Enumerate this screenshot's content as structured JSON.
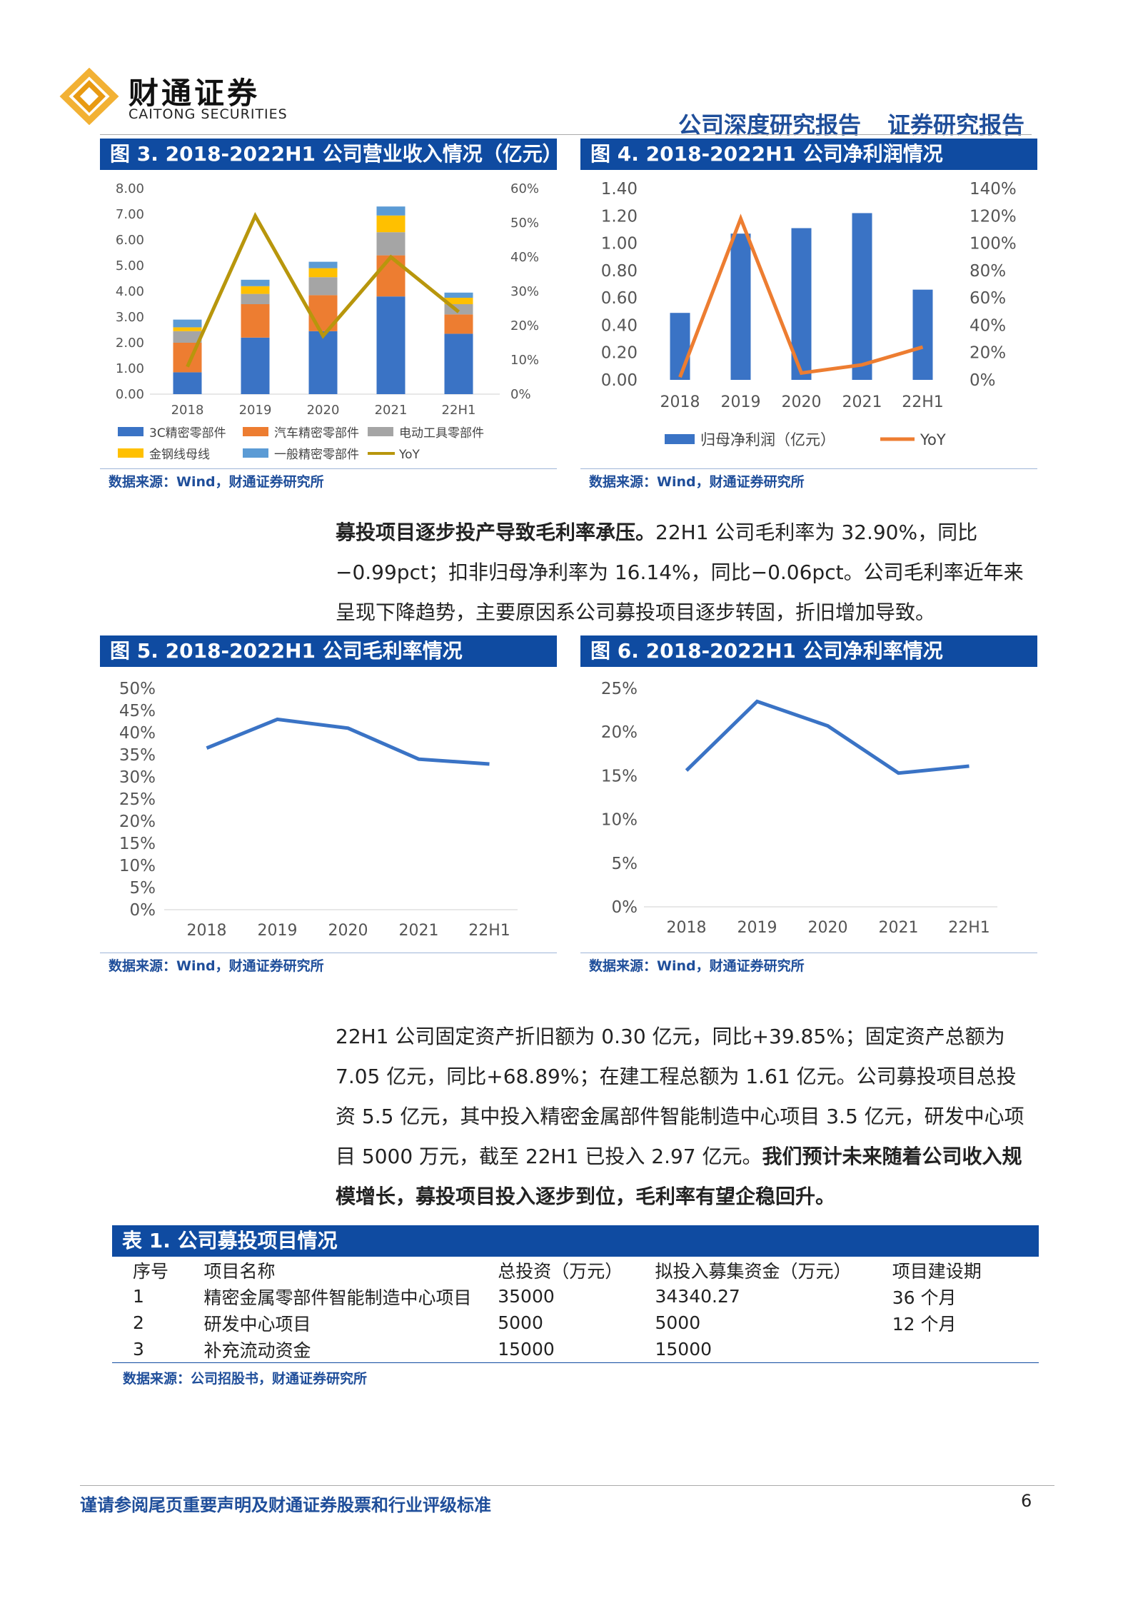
{
  "header": {
    "logo_cn": "财通证券",
    "logo_en": "CAITONG SECURITIES",
    "report_type": "公司深度研究报告",
    "report_category": "证券研究报告"
  },
  "fig3": {
    "title": "图 3. 2018-2022H1 公司营业收入情况（亿元）",
    "source": "数据来源：Wind，财通证券研究所",
    "left_ticks": [
      "8.00",
      "7.00",
      "6.00",
      "5.00",
      "4.00",
      "3.00",
      "2.00",
      "1.00",
      "0.00"
    ],
    "right_ticks": [
      "60%",
      "50%",
      "40%",
      "30%",
      "20%",
      "10%",
      "0%"
    ],
    "legend": [
      "3C精密零部件",
      "汽车精密零部件",
      "电动工具零部件",
      "金钢线母线",
      "一般精密零部件",
      "YoY"
    ],
    "colors": {
      "s1": "#3a73c5",
      "s2": "#ed7d31",
      "s3": "#a5a5a5",
      "s4": "#ffc000",
      "s5": "#5b9bd5",
      "yoy": "#b8960c"
    }
  },
  "fig4": {
    "title": "图 4. 2018-2022H1 公司净利润情况",
    "source": "数据来源：Wind，财通证券研究所",
    "left_ticks": [
      "1.40",
      "1.20",
      "1.00",
      "0.80",
      "0.60",
      "0.40",
      "0.20",
      "0.00"
    ],
    "right_ticks": [
      "140%",
      "120%",
      "100%",
      "80%",
      "60%",
      "40%",
      "20%",
      "0%"
    ],
    "legend": [
      "归母净利润（亿元）",
      "YoY"
    ],
    "colors": {
      "bar": "#3a73c5",
      "yoy": "#ed7d31"
    }
  },
  "fig5": {
    "title": "图 5. 2018-2022H1 公司毛利率情况",
    "source": "数据来源：Wind，财通证券研究所",
    "ticks": [
      "50%",
      "45%",
      "40%",
      "35%",
      "30%",
      "25%",
      "20%",
      "15%",
      "10%",
      "5%",
      "0%"
    ]
  },
  "fig6": {
    "title": "图 6. 2018-2022H1 公司净利率情况",
    "source": "数据来源：Wind，财通证券研究所",
    "ticks": [
      "25%",
      "20%",
      "15%",
      "10%",
      "5%",
      "0%"
    ]
  },
  "chart_data": [
    {
      "type": "bar",
      "stacked": true,
      "categories": [
        "2018",
        "2019",
        "2020",
        "2021",
        "22H1"
      ],
      "series": [
        {
          "name": "3C精密零部件",
          "values": [
            0.85,
            2.2,
            2.45,
            3.8,
            2.35
          ]
        },
        {
          "name": "汽车精密零部件",
          "values": [
            1.15,
            1.3,
            1.4,
            1.6,
            0.75
          ]
        },
        {
          "name": "电动工具零部件",
          "values": [
            0.45,
            0.4,
            0.7,
            0.9,
            0.4
          ]
        },
        {
          "name": "金钢线母线",
          "values": [
            0.15,
            0.3,
            0.35,
            0.65,
            0.25
          ]
        },
        {
          "name": "一般精密零部件",
          "values": [
            0.3,
            0.25,
            0.25,
            0.35,
            0.2
          ]
        }
      ],
      "line_series": {
        "name": "YoY",
        "values": [
          8,
          52,
          17,
          40,
          24
        ],
        "unit": "%"
      },
      "ylim": [
        0,
        8
      ],
      "y2lim": [
        0,
        60
      ],
      "legend_position": "bottom"
    },
    {
      "type": "bar",
      "categories": [
        "2018",
        "2019",
        "2020",
        "2021",
        "22H1"
      ],
      "series": [
        {
          "name": "归母净利润（亿元）",
          "values": [
            0.49,
            1.07,
            1.11,
            1.22,
            0.66
          ]
        }
      ],
      "line_series": {
        "name": "YoY",
        "values": [
          2,
          118,
          5,
          11,
          24
        ],
        "unit": "%"
      },
      "ylim": [
        0,
        1.4
      ],
      "y2lim": [
        0,
        140
      ],
      "legend_position": "bottom"
    },
    {
      "type": "line",
      "categories": [
        "2018",
        "2019",
        "2020",
        "2021",
        "22H1"
      ],
      "series": [
        {
          "values": [
            36.5,
            43,
            41,
            34,
            32.9
          ]
        }
      ],
      "ylim": [
        0,
        50
      ],
      "unit": "%"
    },
    {
      "type": "line",
      "categories": [
        "2018",
        "2019",
        "2020",
        "2021",
        "22H1"
      ],
      "series": [
        {
          "values": [
            15.6,
            23.5,
            20.7,
            15.3,
            16.1
          ]
        }
      ],
      "ylim": [
        0,
        25
      ],
      "unit": "%"
    }
  ],
  "para1": {
    "lead": "募投项目逐步投产导致毛利率承压。",
    "text": "22H1 公司毛利率为 32.90%，同比−0.99pct；扣非归母净利率为 16.14%，同比−0.06pct。公司毛利率近年来呈现下降趋势，主要原因系公司募投项目逐步转固，折旧增加导致。"
  },
  "para2": {
    "text": "22H1 公司固定资产折旧额为 0.30 亿元，同比+39.85%；固定资产总额为 7.05 亿元，同比+68.89%；在建工程总额为 1.61 亿元。公司募投项目总投资 5.5 亿元，其中投入精密金属部件智能制造中心项目 3.5 亿元，研发中心项目 5000 万元，截至 22H1 已投入 2.97 亿元。",
    "bold": "我们预计未来随着公司收入规模增长，募投项目投入逐步到位，毛利率有望企稳回升。"
  },
  "table1": {
    "title": "表 1. 公司募投项目情况",
    "headers": [
      "序号",
      "项目名称",
      "总投资（万元）",
      "拟投入募集资金（万元）",
      "项目建设期"
    ],
    "rows": [
      [
        "1",
        "精密金属零部件智能制造中心项目",
        "35000",
        "34340.27",
        "36 个月"
      ],
      [
        "2",
        "研发中心项目",
        "5000",
        "5000",
        "12 个月"
      ],
      [
        "3",
        "补充流动资金",
        "15000",
        "15000",
        ""
      ]
    ],
    "source": "数据来源：公司招股书，财通证券研究所"
  },
  "footer": {
    "disclaimer": "谨请参阅尾页重要声明及财通证券股票和行业评级标准",
    "page": "6"
  }
}
